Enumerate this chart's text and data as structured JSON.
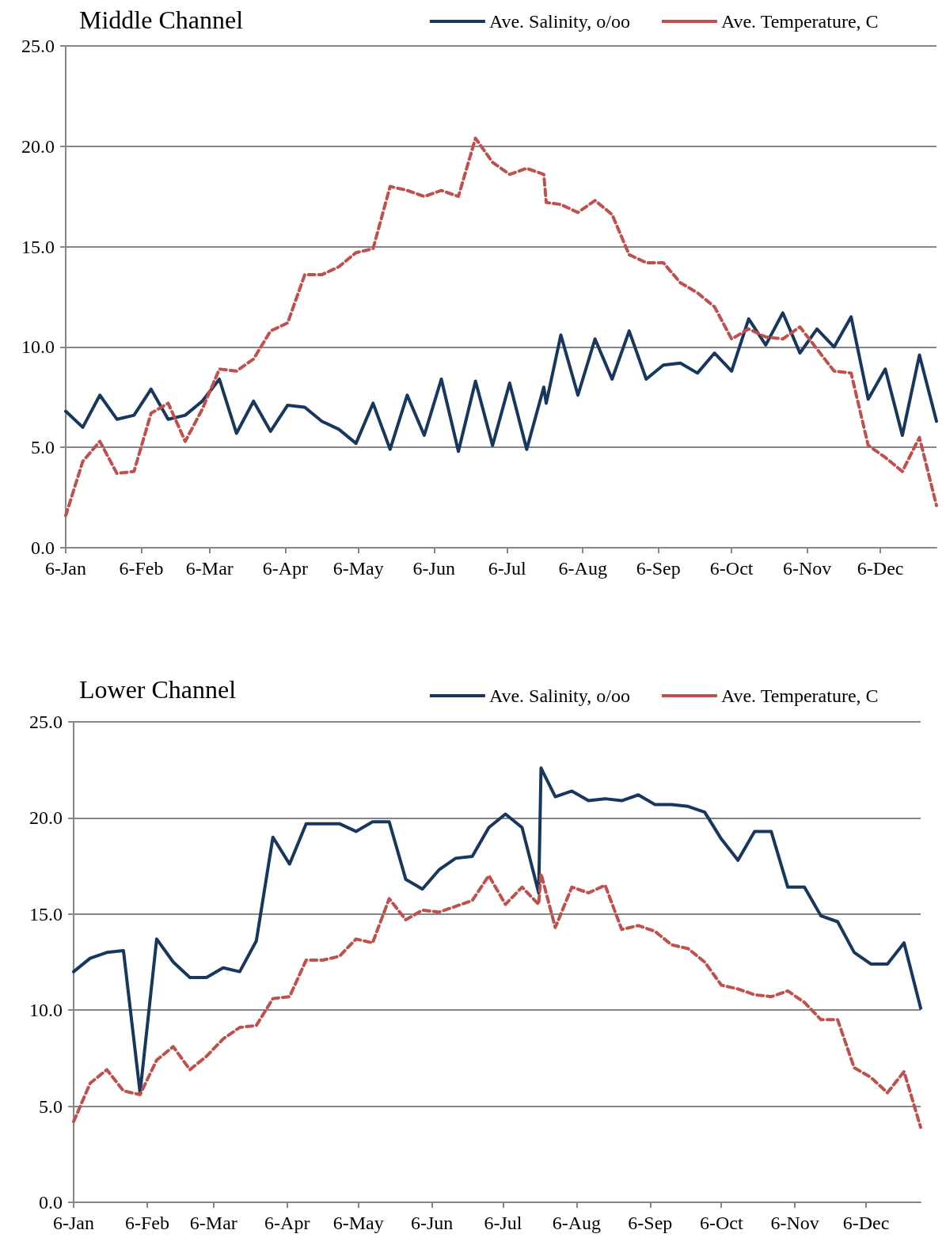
{
  "chart_data": [
    {
      "type": "line",
      "title": "Middle Channel",
      "x": [
        "--01-06",
        "--01-13",
        "--01-20",
        "--01-27",
        "--02-03",
        "--02-10",
        "--02-17",
        "--02-24",
        "--03-03",
        "--03-10",
        "--03-17",
        "--03-24",
        "--03-31",
        "--04-07",
        "--04-14",
        "--04-21",
        "--04-28",
        "--05-05",
        "--05-12",
        "--05-19",
        "--05-26",
        "--06-02",
        "--06-09",
        "--06-16",
        "--06-23",
        "--06-30",
        "--07-07",
        "--07-14",
        "--07-21",
        "--07-22",
        "--07-28",
        "--08-04",
        "--08-11",
        "--08-18",
        "--08-25",
        "--09-01",
        "--09-08",
        "--09-15",
        "--09-22",
        "--09-29",
        "--10-06",
        "--10-13",
        "--10-20",
        "--10-27",
        "--11-03",
        "--11-10",
        "--11-17",
        "--11-24",
        "--12-01",
        "--12-08",
        "--12-15",
        "--12-22",
        "--12-29"
      ],
      "series": [
        {
          "name": "Ave. Salinity, o/oo",
          "color": "#17375e",
          "line_style": "solid",
          "values": [
            6.8,
            6.0,
            7.6,
            6.4,
            6.6,
            7.9,
            6.4,
            6.6,
            7.3,
            8.4,
            5.7,
            7.3,
            5.8,
            7.1,
            7.0,
            6.3,
            5.9,
            5.2,
            7.2,
            4.9,
            7.6,
            5.6,
            8.4,
            4.8,
            8.3,
            5.1,
            8.2,
            4.9,
            8.0,
            7.2,
            10.6,
            7.6,
            10.4,
            8.4,
            10.8,
            8.4,
            9.1,
            9.2,
            8.7,
            9.7,
            8.8,
            11.4,
            10.1,
            11.7,
            9.7,
            10.9,
            10.0,
            11.5,
            7.4,
            8.9,
            5.6,
            9.6,
            6.3
          ]
        },
        {
          "name": "Ave. Temperature, C",
          "color": "#c0504d",
          "line_style": "dashed",
          "values": [
            1.6,
            4.3,
            5.3,
            3.7,
            3.8,
            6.7,
            7.2,
            5.3,
            6.9,
            8.9,
            8.8,
            9.4,
            10.8,
            11.2,
            13.6,
            13.6,
            14.0,
            14.7,
            14.9,
            18.0,
            17.8,
            17.5,
            17.8,
            17.5,
            20.4,
            19.2,
            18.6,
            18.9,
            18.6,
            17.2,
            17.1,
            16.7,
            17.3,
            16.6,
            14.6,
            14.2,
            14.2,
            13.2,
            12.7,
            12.0,
            10.4,
            10.9,
            10.5,
            10.4,
            11.0,
            9.9,
            8.8,
            8.7,
            5.1,
            4.5,
            3.8,
            5.5,
            2.1
          ]
        }
      ],
      "xlim": [
        "--01-06",
        "--12-29"
      ],
      "xticks": [
        {
          "value": "--01-06",
          "label": "6-Jan"
        },
        {
          "value": "--02-06",
          "label": "6-Feb"
        },
        {
          "value": "--03-06",
          "label": "6-Mar"
        },
        {
          "value": "--04-06",
          "label": "6-Apr"
        },
        {
          "value": "--05-06",
          "label": "6-May"
        },
        {
          "value": "--06-06",
          "label": "6-Jun"
        },
        {
          "value": "--07-06",
          "label": "6-Jul"
        },
        {
          "value": "--08-06",
          "label": "6-Aug"
        },
        {
          "value": "--09-06",
          "label": "6-Sep"
        },
        {
          "value": "--10-06",
          "label": "6-Oct"
        },
        {
          "value": "--11-06",
          "label": "6-Nov"
        },
        {
          "value": "--12-06",
          "label": "6-Dec"
        }
      ],
      "ylim": [
        0,
        25
      ],
      "yticks": [
        {
          "value": 0,
          "label": "0.0"
        },
        {
          "value": 5,
          "label": "5.0"
        },
        {
          "value": 10,
          "label": "10.0"
        },
        {
          "value": 15,
          "label": "15.0"
        },
        {
          "value": 20,
          "label": "20.0"
        },
        {
          "value": 25,
          "label": "25.0"
        }
      ],
      "grid": "y",
      "legend": "top right",
      "marker": "none"
    },
    {
      "type": "line",
      "title": "Lower Channel",
      "x": [
        "--01-06",
        "--01-13",
        "--01-20",
        "--01-27",
        "--02-03",
        "--02-10",
        "--02-17",
        "--02-24",
        "--03-03",
        "--03-10",
        "--03-17",
        "--03-24",
        "--03-31",
        "--04-07",
        "--04-14",
        "--04-21",
        "--04-28",
        "--05-05",
        "--05-12",
        "--05-19",
        "--05-26",
        "--06-02",
        "--06-09",
        "--06-16",
        "--06-23",
        "--06-30",
        "--07-07",
        "--07-14",
        "--07-21",
        "--07-22",
        "--07-28",
        "--08-04",
        "--08-11",
        "--08-18",
        "--08-25",
        "--09-01",
        "--09-08",
        "--09-15",
        "--09-22",
        "--09-29",
        "--10-06",
        "--10-13",
        "--10-20",
        "--10-27",
        "--11-03",
        "--11-10",
        "--11-17",
        "--11-24",
        "--12-01",
        "--12-08",
        "--12-15",
        "--12-22",
        "--12-29"
      ],
      "series": [
        {
          "name": "Ave. Salinity, o/oo",
          "color": "#17375e",
          "line_style": "solid",
          "values": [
            12.0,
            12.7,
            13.0,
            13.1,
            5.7,
            13.7,
            12.5,
            11.7,
            11.7,
            12.2,
            12.0,
            13.6,
            19.0,
            17.6,
            19.7,
            19.7,
            19.7,
            19.3,
            19.8,
            19.8,
            16.8,
            16.3,
            17.3,
            17.9,
            18.0,
            19.5,
            20.2,
            19.5,
            16.1,
            22.6,
            21.1,
            21.4,
            20.9,
            21.0,
            20.9,
            21.2,
            20.7,
            20.7,
            20.6,
            20.3,
            18.9,
            17.8,
            19.3,
            19.3,
            16.4,
            16.4,
            14.9,
            14.6,
            13.0,
            12.4,
            12.4,
            13.5,
            10.1
          ]
        },
        {
          "name": "Ave. Temperature, C",
          "color": "#c0504d",
          "line_style": "dashed",
          "values": [
            4.2,
            6.2,
            6.9,
            5.8,
            5.6,
            7.4,
            8.1,
            6.9,
            7.6,
            8.5,
            9.1,
            9.2,
            10.6,
            10.7,
            12.6,
            12.6,
            12.8,
            13.7,
            13.5,
            15.8,
            14.7,
            15.2,
            15.1,
            15.4,
            15.7,
            17.0,
            15.5,
            16.4,
            15.5,
            17.1,
            14.3,
            16.4,
            16.1,
            16.5,
            14.2,
            14.4,
            14.1,
            13.4,
            13.2,
            12.5,
            11.3,
            11.1,
            10.8,
            10.7,
            11.0,
            10.4,
            9.5,
            9.5,
            7.0,
            6.5,
            5.7,
            6.8,
            3.9
          ]
        }
      ],
      "xlim": [
        "--01-06",
        "--12-29"
      ],
      "xticks": [
        {
          "value": "--01-06",
          "label": "6-Jan"
        },
        {
          "value": "--02-06",
          "label": "6-Feb"
        },
        {
          "value": "--03-06",
          "label": "6-Mar"
        },
        {
          "value": "--04-06",
          "label": "6-Apr"
        },
        {
          "value": "--05-06",
          "label": "6-May"
        },
        {
          "value": "--06-06",
          "label": "6-Jun"
        },
        {
          "value": "--07-06",
          "label": "6-Jul"
        },
        {
          "value": "--08-06",
          "label": "6-Aug"
        },
        {
          "value": "--09-06",
          "label": "6-Sep"
        },
        {
          "value": "--10-06",
          "label": "6-Oct"
        },
        {
          "value": "--11-06",
          "label": "6-Nov"
        },
        {
          "value": "--12-06",
          "label": "6-Dec"
        }
      ],
      "ylim": [
        0,
        25
      ],
      "yticks": [
        {
          "value": 0,
          "label": "0.0"
        },
        {
          "value": 5,
          "label": "5.0"
        },
        {
          "value": 10,
          "label": "10.0"
        },
        {
          "value": 15,
          "label": "15.0"
        },
        {
          "value": 20,
          "label": "20.0"
        },
        {
          "value": 25,
          "label": "25.0"
        }
      ],
      "grid": "y",
      "legend": "top right",
      "marker": "none"
    }
  ]
}
